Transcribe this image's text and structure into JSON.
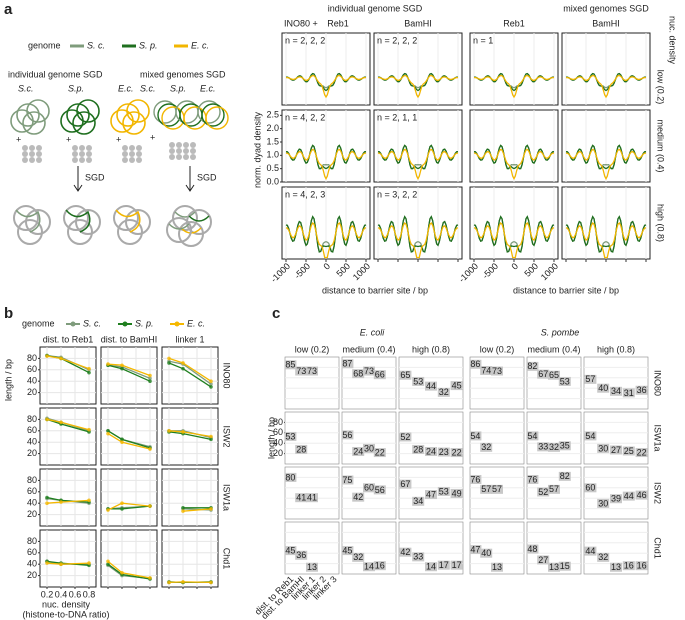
{
  "panel_a": {
    "label": "a",
    "legend_title": "genome",
    "series": [
      {
        "name": "S. c.",
        "color": "#7f9c7c"
      },
      {
        "name": "S. p.",
        "color": "#1f6f1f"
      },
      {
        "name": "E. c.",
        "color": "#f2b600"
      }
    ],
    "schematic": {
      "individual": "individual genome SGD",
      "mixed": "mixed genomes SGD",
      "genomes": [
        "S.c.",
        "S.p.",
        "E.c."
      ],
      "plus": "+",
      "step": "SGD"
    },
    "groups": [
      "individual genome SGD",
      "mixed genomes SGD"
    ],
    "prefix": "INO80 +",
    "columns": [
      "Reb1",
      "BamHI",
      "Reb1",
      "BamHI"
    ],
    "strip_title": "nuc. density",
    "rows": [
      "low (0.2)",
      "medium (0.4)",
      "high (0.8)"
    ],
    "n_labels": [
      [
        "n = 2, 2, 2",
        "n = 2, 2, 2",
        "n = 1",
        null
      ],
      [
        "n = 4, 2, 2",
        "n = 2, 1, 1",
        null,
        null
      ],
      [
        "n = 4, 2, 3",
        "n = 3, 2, 2",
        null,
        null
      ]
    ],
    "ylabel": "norm. dyad density",
    "ylim": [
      0,
      2.7
    ],
    "yticks": [
      {
        "value": 0,
        "label": "0.0"
      },
      {
        "value": 0.5,
        "label": "0.5"
      },
      {
        "value": 1,
        "label": "1.0"
      },
      {
        "value": 1.5,
        "label": "1.5"
      },
      {
        "value": 2,
        "label": "2.0"
      },
      {
        "value": 2.5,
        "label": "2.5"
      }
    ],
    "xlim": [
      -1100,
      1100
    ],
    "xticks": [
      -1000,
      -500,
      0,
      500,
      1000
    ],
    "xlabel": "distance to barrier site / bp"
  },
  "panel_b": {
    "label": "b",
    "legend_title": "genome",
    "series": [
      {
        "name": "S. c.",
        "color": "#7f9c7c"
      },
      {
        "name": "S. p.",
        "color": "#1f7f1f"
      },
      {
        "name": "E. c.",
        "color": "#f5b800"
      }
    ],
    "columns": [
      "dist. to Reb1",
      "dist. to BamHI",
      "linker 1"
    ],
    "x": [
      0.2,
      0.4,
      0.8
    ],
    "xlim": [
      0.1,
      0.9
    ],
    "xticks": [
      0.2,
      0.4,
      0.6,
      0.8
    ],
    "ylim": [
      0,
      100
    ],
    "yticks": [
      20,
      40,
      60,
      80
    ],
    "ylabel": "length / bp",
    "xlabel": "nuc. density",
    "xsublabel": "(histone-to-DNA ratio)",
    "rows": [
      {
        "name": "INO80",
        "cells": [
          [
            [
              85,
              82,
              60
            ],
            [
              85,
              80,
              55
            ],
            [
              84,
              80,
              62
            ]
          ],
          [
            [
              68,
              65,
              45
            ],
            [
              68,
              62,
              40
            ],
            [
              70,
              68,
              50
            ]
          ],
          [
            [
              75,
              70,
              35
            ],
            [
              72,
              62,
              30
            ],
            [
              80,
              72,
              40
            ]
          ]
        ]
      },
      {
        "name": "ISW2",
        "cells": [
          [
            [
              82,
              75,
              60
            ],
            [
              80,
              72,
              58
            ],
            [
              80,
              75,
              62
            ]
          ],
          [
            [
              60,
              45,
              32
            ],
            [
              60,
              45,
              30
            ],
            [
              55,
              40,
              28
            ]
          ],
          [
            [
              60,
              60,
              48
            ],
            [
              58,
              55,
              45
            ],
            [
              60,
              58,
              50
            ]
          ]
        ]
      },
      {
        "name": "ISW1a",
        "cells": [
          [
            [
              48,
              45,
              40
            ],
            [
              50,
              45,
              42
            ],
            [
              40,
              42,
              45
            ]
          ],
          [
            [
              30,
              32,
              35
            ],
            [
              30,
              30,
              35
            ],
            [
              28,
              40,
              35
            ]
          ],
          [
            [
              null,
              30,
              28
            ],
            [
              null,
              32,
              32
            ],
            [
              null,
              26,
              30
            ]
          ]
        ]
      },
      {
        "name": "Chd1",
        "cells": [
          [
            [
              45,
              40,
              40
            ],
            [
              45,
              42,
              38
            ],
            [
              42,
              40,
              42
            ]
          ],
          [
            [
              38,
              20,
              15
            ],
            [
              40,
              22,
              14
            ],
            [
              45,
              25,
              16
            ]
          ],
          [
            [
              8,
              8,
              8
            ],
            [
              9,
              8,
              9
            ],
            [
              8,
              9,
              8
            ]
          ]
        ]
      }
    ]
  },
  "panel_c": {
    "label": "c",
    "organisms": [
      "E. coli",
      "S. pombe"
    ],
    "columns": [
      "low (0.2)",
      "medium (0.4)",
      "high (0.8)"
    ],
    "categories": [
      "dist. to Reb1",
      "dist. to BamHI",
      "linker 1",
      "linker 2",
      "linker 3"
    ],
    "ylim": [
      0,
      100
    ],
    "yticks": [
      20,
      40,
      60,
      80
    ],
    "ylabel": "length / bp",
    "rows": [
      {
        "name": "INO80",
        "cells": [
          [
            85,
            73,
            73,
            null,
            null
          ],
          [
            87,
            68,
            73,
            66,
            null
          ],
          [
            65,
            53,
            44,
            32,
            45
          ],
          [
            86,
            74,
            73,
            null,
            null
          ],
          [
            82,
            67,
            65,
            53,
            null
          ],
          [
            57,
            40,
            34,
            31,
            36
          ]
        ]
      },
      {
        "name": "ISW1a",
        "cells": [
          [
            53,
            28,
            null,
            null,
            null
          ],
          [
            56,
            24,
            30,
            22,
            null
          ],
          [
            52,
            28,
            24,
            23,
            22
          ],
          [
            54,
            32,
            null,
            null,
            null
          ],
          [
            54,
            33,
            32,
            35,
            null
          ],
          [
            54,
            30,
            27,
            25,
            22
          ]
        ]
      },
      {
        "name": "ISW2",
        "cells": [
          [
            80,
            41,
            41,
            null,
            null
          ],
          [
            75,
            42,
            60,
            56,
            null
          ],
          [
            67,
            34,
            47,
            53,
            49
          ],
          [
            76,
            57,
            57,
            null,
            null
          ],
          [
            76,
            52,
            57,
            82,
            null
          ],
          [
            60,
            30,
            39,
            44,
            46
          ]
        ]
      },
      {
        "name": "Chd1",
        "cells": [
          [
            45,
            36,
            13,
            null,
            null
          ],
          [
            45,
            32,
            14,
            16,
            null
          ],
          [
            42,
            33,
            14,
            17,
            17
          ],
          [
            47,
            40,
            13,
            null,
            null
          ],
          [
            48,
            27,
            13,
            15,
            null
          ],
          [
            44,
            32,
            13,
            16,
            16
          ]
        ]
      }
    ]
  }
}
